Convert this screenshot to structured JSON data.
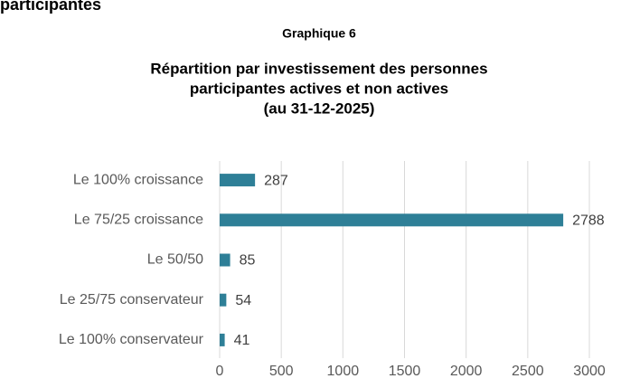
{
  "header": "participantes",
  "chart_data": {
    "type": "hbar",
    "label": "Graphique 6",
    "title": [
      "Répartition par investissement des personnes",
      "participantes actives et non actives",
      "(au 31-12-2025)"
    ],
    "categories": [
      "Le 100% croissance",
      "Le 75/25 croissance",
      "Le 50/50",
      "Le 25/75 conservateur",
      "Le 100% conservateur"
    ],
    "values": [
      287,
      2788,
      85,
      54,
      41
    ],
    "color": "#2e7f97",
    "xlim": [
      0,
      3000
    ],
    "xticks": [
      0,
      500,
      1000,
      1500,
      2000,
      2500,
      3000
    ],
    "grid": true
  }
}
